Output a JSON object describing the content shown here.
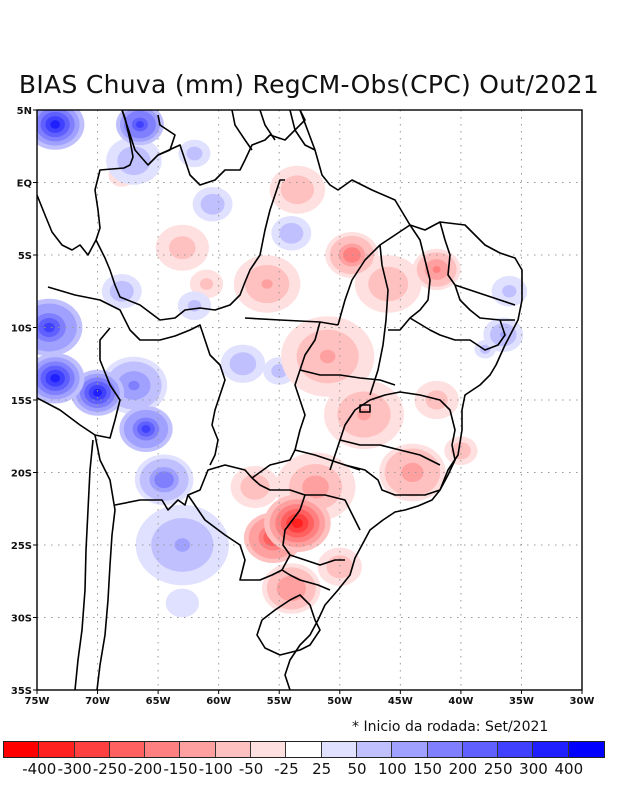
{
  "title": "BIAS Chuva (mm) RegCM-Obs(CPC) Out/2021",
  "note": "* Inicio da rodada: Set/2021",
  "map": {
    "lon_range": [
      -75,
      -30
    ],
    "lat_range": [
      -35,
      5
    ],
    "lon_ticks": [
      {
        "value": -75,
        "label": "75W"
      },
      {
        "value": -70,
        "label": "70W"
      },
      {
        "value": -65,
        "label": "65W"
      },
      {
        "value": -60,
        "label": "60W"
      },
      {
        "value": -55,
        "label": "55W"
      },
      {
        "value": -50,
        "label": "50W"
      },
      {
        "value": -45,
        "label": "45W"
      },
      {
        "value": -40,
        "label": "40W"
      },
      {
        "value": -35,
        "label": "35W"
      },
      {
        "value": -30,
        "label": "30W"
      }
    ],
    "lat_ticks": [
      {
        "value": 5,
        "label": "5N"
      },
      {
        "value": 0,
        "label": "EQ"
      },
      {
        "value": -5,
        "label": "5S"
      },
      {
        "value": -10,
        "label": "10S"
      },
      {
        "value": -15,
        "label": "15S"
      },
      {
        "value": -20,
        "label": "20S"
      },
      {
        "value": -25,
        "label": "25S"
      },
      {
        "value": -30,
        "label": "30S"
      },
      {
        "value": -35,
        "label": "35S"
      }
    ],
    "bias_features": [
      {
        "lon": -73.5,
        "lat": 4.0,
        "r": 2.2,
        "bias": 320
      },
      {
        "lon": -66.5,
        "lat": 4.0,
        "r": 1.8,
        "bias": 280
      },
      {
        "lon": -67,
        "lat": 1.5,
        "r": 2.5,
        "bias": 80
      },
      {
        "lon": -62,
        "lat": 2.0,
        "r": 1.8,
        "bias": 60
      },
      {
        "lon": -60.5,
        "lat": -1.5,
        "r": 1.8,
        "bias": 75
      },
      {
        "lon": -54,
        "lat": -3.5,
        "r": 1.8,
        "bias": 90
      },
      {
        "lon": -68,
        "lat": 0.5,
        "r": 2.0,
        "bias": -40
      },
      {
        "lon": -53.5,
        "lat": -0.5,
        "r": 2.5,
        "bias": -80
      },
      {
        "lon": -63,
        "lat": -4.5,
        "r": 3.0,
        "bias": -60
      },
      {
        "lon": -56,
        "lat": -7,
        "r": 2.5,
        "bias": -110
      },
      {
        "lon": -61,
        "lat": -7,
        "r": 1.5,
        "bias": -70
      },
      {
        "lon": -68,
        "lat": -7.5,
        "r": 1.8,
        "bias": 80
      },
      {
        "lon": -62,
        "lat": -8.5,
        "r": 1.5,
        "bias": 70
      },
      {
        "lon": -74,
        "lat": -10,
        "r": 2.5,
        "bias": 250
      },
      {
        "lon": -73.5,
        "lat": -13.5,
        "r": 2.2,
        "bias": 330
      },
      {
        "lon": -70,
        "lat": -14.5,
        "r": 2.0,
        "bias": 320
      },
      {
        "lon": -66,
        "lat": -17,
        "r": 2.0,
        "bias": 260
      },
      {
        "lon": -67,
        "lat": -14,
        "r": 2.5,
        "bias": 150
      },
      {
        "lon": -64.5,
        "lat": -20.5,
        "r": 2.2,
        "bias": 180
      },
      {
        "lon": -63,
        "lat": -25,
        "r": 3.5,
        "bias": 100
      },
      {
        "lon": -63,
        "lat": -29,
        "r": 2.5,
        "bias": 40
      },
      {
        "lon": -58,
        "lat": -12.5,
        "r": 2.0,
        "bias": 80
      },
      {
        "lon": -55,
        "lat": -13,
        "r": 1.8,
        "bias": 60
      },
      {
        "lon": -49,
        "lat": -5,
        "r": 2.0,
        "bias": -180
      },
      {
        "lon": -42,
        "lat": -6,
        "r": 1.8,
        "bias": -160
      },
      {
        "lon": -46,
        "lat": -7,
        "r": 3.0,
        "bias": -90
      },
      {
        "lon": -51,
        "lat": -12,
        "r": 3.5,
        "bias": -110
      },
      {
        "lon": -48,
        "lat": -16,
        "r": 3.0,
        "bias": -110
      },
      {
        "lon": -42,
        "lat": -15,
        "r": 2.5,
        "bias": -60
      },
      {
        "lon": -44,
        "lat": -20,
        "r": 2.5,
        "bias": -140
      },
      {
        "lon": -40,
        "lat": -18.5,
        "r": 1.5,
        "bias": -90
      },
      {
        "lon": -53.5,
        "lat": -23.5,
        "r": 2.5,
        "bias": -330
      },
      {
        "lon": -55.5,
        "lat": -24.5,
        "r": 2.2,
        "bias": -260
      },
      {
        "lon": -52,
        "lat": -21,
        "r": 3.0,
        "bias": -120
      },
      {
        "lon": -57,
        "lat": -21,
        "r": 2.2,
        "bias": -90
      },
      {
        "lon": -54,
        "lat": -28,
        "r": 2.2,
        "bias": -150
      },
      {
        "lon": -50,
        "lat": -26.5,
        "r": 2.0,
        "bias": -90
      },
      {
        "lon": -36,
        "lat": -7.5,
        "r": 1.6,
        "bias": 70
      },
      {
        "lon": -36.5,
        "lat": -10.5,
        "r": 1.5,
        "bias": 100
      },
      {
        "lon": -38,
        "lat": -11.5,
        "r": 1.2,
        "bias": 60
      }
    ]
  },
  "colorbar": {
    "labels": [
      "-400",
      "-300",
      "-250",
      "-200",
      "-150",
      "-100",
      "-50",
      "-25",
      "25",
      "50",
      "100",
      "150",
      "200",
      "250",
      "300",
      "400"
    ],
    "colors": [
      "#ff0000",
      "#ff2020",
      "#ff4040",
      "#ff6060",
      "#ff8080",
      "#ffa0a0",
      "#ffc0c0",
      "#ffe0e0",
      "#ffffff",
      "#e0e0ff",
      "#c0c0ff",
      "#a0a0ff",
      "#8080ff",
      "#6060ff",
      "#4040ff",
      "#2020ff",
      "#0000ff"
    ]
  }
}
